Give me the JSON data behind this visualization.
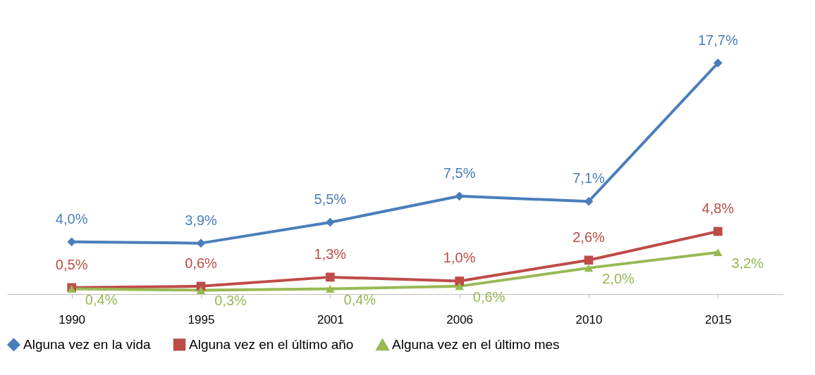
{
  "chart_data": {
    "type": "line",
    "categories": [
      "1990",
      "1995",
      "2001",
      "2006",
      "2010",
      "2015"
    ],
    "series": [
      {
        "name": "Alguna vez en la vida",
        "color": "#4a7ebb",
        "marker": "diamond",
        "values": [
          4.0,
          3.9,
          5.5,
          7.5,
          7.1,
          17.7
        ],
        "value_labels": [
          "4,0%",
          "3,9%",
          "5,5%",
          "7,5%",
          "7,1%",
          "17,7%"
        ]
      },
      {
        "name": "Alguna vez en el último año",
        "color": "#be4b48",
        "marker": "square",
        "values": [
          0.5,
          0.6,
          1.3,
          1.0,
          2.6,
          4.8
        ],
        "value_labels": [
          "0,5%",
          "0,6%",
          "1,3%",
          "1,0%",
          "2,6%",
          "4,8%"
        ]
      },
      {
        "name": "Alguna vez en el último mes",
        "color": "#98b954",
        "marker": "triangle",
        "values": [
          0.4,
          0.3,
          0.4,
          0.6,
          2.0,
          3.2
        ],
        "value_labels": [
          "0,4%",
          "0,3%",
          "0,4%",
          "0,6%",
          "2,0%",
          "3,2%"
        ]
      }
    ],
    "legend": "bottom",
    "grid": false
  }
}
